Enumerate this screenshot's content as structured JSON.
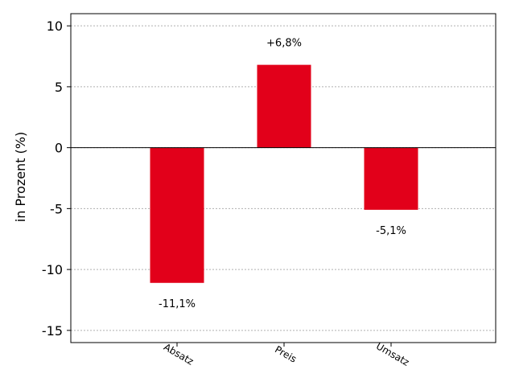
{
  "chart_data": {
    "type": "bar",
    "title": "",
    "xlabel": "",
    "ylabel": "in Prozent (%)",
    "categories": [
      "Absatz",
      "Preis",
      "Umsatz"
    ],
    "values": [
      -11.1,
      6.8,
      -5.1
    ],
    "data_labels": [
      "-11,1%",
      "+6,8%",
      "-5,1%"
    ],
    "ylim": [
      -16,
      11
    ],
    "yticks": [
      10,
      5,
      0,
      -5,
      -10,
      -15
    ],
    "ytick_labels": [
      "10",
      "5",
      "0",
      "-5",
      "-10",
      "-15"
    ],
    "grid": "horizontal dotted",
    "colors": {
      "bar": "#e2001a"
    }
  }
}
